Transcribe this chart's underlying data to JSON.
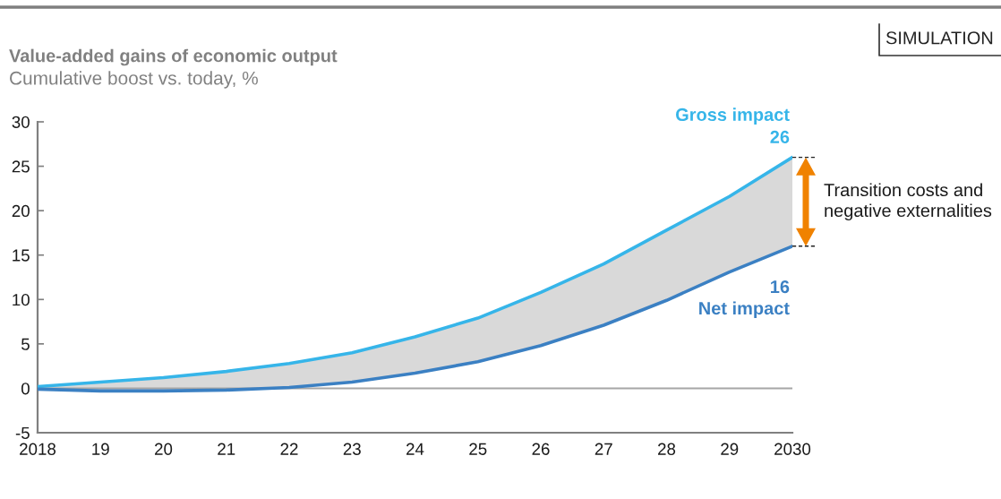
{
  "chart_data": {
    "type": "line",
    "title": "Value-added gains of economic output",
    "subtitle": "Cumulative boost vs. today, %",
    "x": [
      2018,
      2019,
      2020,
      2021,
      2022,
      2023,
      2024,
      2025,
      2026,
      2027,
      2028,
      2029,
      2030
    ],
    "xlim": [
      2018,
      2030
    ],
    "xticks": [
      2018,
      {
        "value": 2019,
        "label": "19"
      },
      {
        "value": 2020,
        "label": "20"
      },
      {
        "value": 2021,
        "label": "21"
      },
      {
        "value": 2022,
        "label": "22"
      },
      {
        "value": 2023,
        "label": "23"
      },
      {
        "value": 2024,
        "label": "24"
      },
      {
        "value": 2025,
        "label": "25"
      },
      {
        "value": 2026,
        "label": "26"
      },
      {
        "value": 2027,
        "label": "27"
      },
      {
        "value": 2028,
        "label": "28"
      },
      {
        "value": 2029,
        "label": "29"
      },
      2030
    ],
    "ylim": [
      -5,
      30
    ],
    "yticks": [
      -5,
      0,
      5,
      10,
      15,
      20,
      25,
      30
    ],
    "ref_lines": [
      {
        "axis": "y",
        "value": 0,
        "color": "#a6a6a6"
      }
    ],
    "series": [
      {
        "name": "Gross impact",
        "color": "#36b5e9",
        "values": [
          0.2,
          0.7,
          1.2,
          1.9,
          2.8,
          4.0,
          5.8,
          7.9,
          10.8,
          14.0,
          17.8,
          21.6,
          26
        ],
        "lower": [
          -0.1,
          -0.3,
          -0.3,
          -0.2,
          0.1,
          0.7,
          1.7,
          3.0,
          4.8,
          7.1,
          9.9,
          13.1,
          16
        ],
        "upper": [
          0.2,
          0.7,
          1.2,
          1.9,
          2.8,
          4.0,
          5.8,
          7.9,
          10.8,
          14.0,
          17.8,
          21.6,
          26
        ],
        "value_labels": [
          null,
          null,
          null,
          null,
          null,
          null,
          null,
          null,
          null,
          null,
          null,
          null,
          "26"
        ]
      },
      {
        "name": "Net impact",
        "color": "#3b80c3",
        "values": [
          -0.1,
          -0.3,
          -0.3,
          -0.2,
          0.1,
          0.7,
          1.7,
          3.0,
          4.8,
          7.1,
          9.9,
          13.1,
          16
        ],
        "value_labels": [
          null,
          null,
          null,
          null,
          null,
          null,
          null,
          null,
          null,
          null,
          null,
          null,
          "16"
        ]
      }
    ],
    "annotations": [
      "SIMULATION",
      "Transition costs and\nnegative externalities"
    ]
  }
}
